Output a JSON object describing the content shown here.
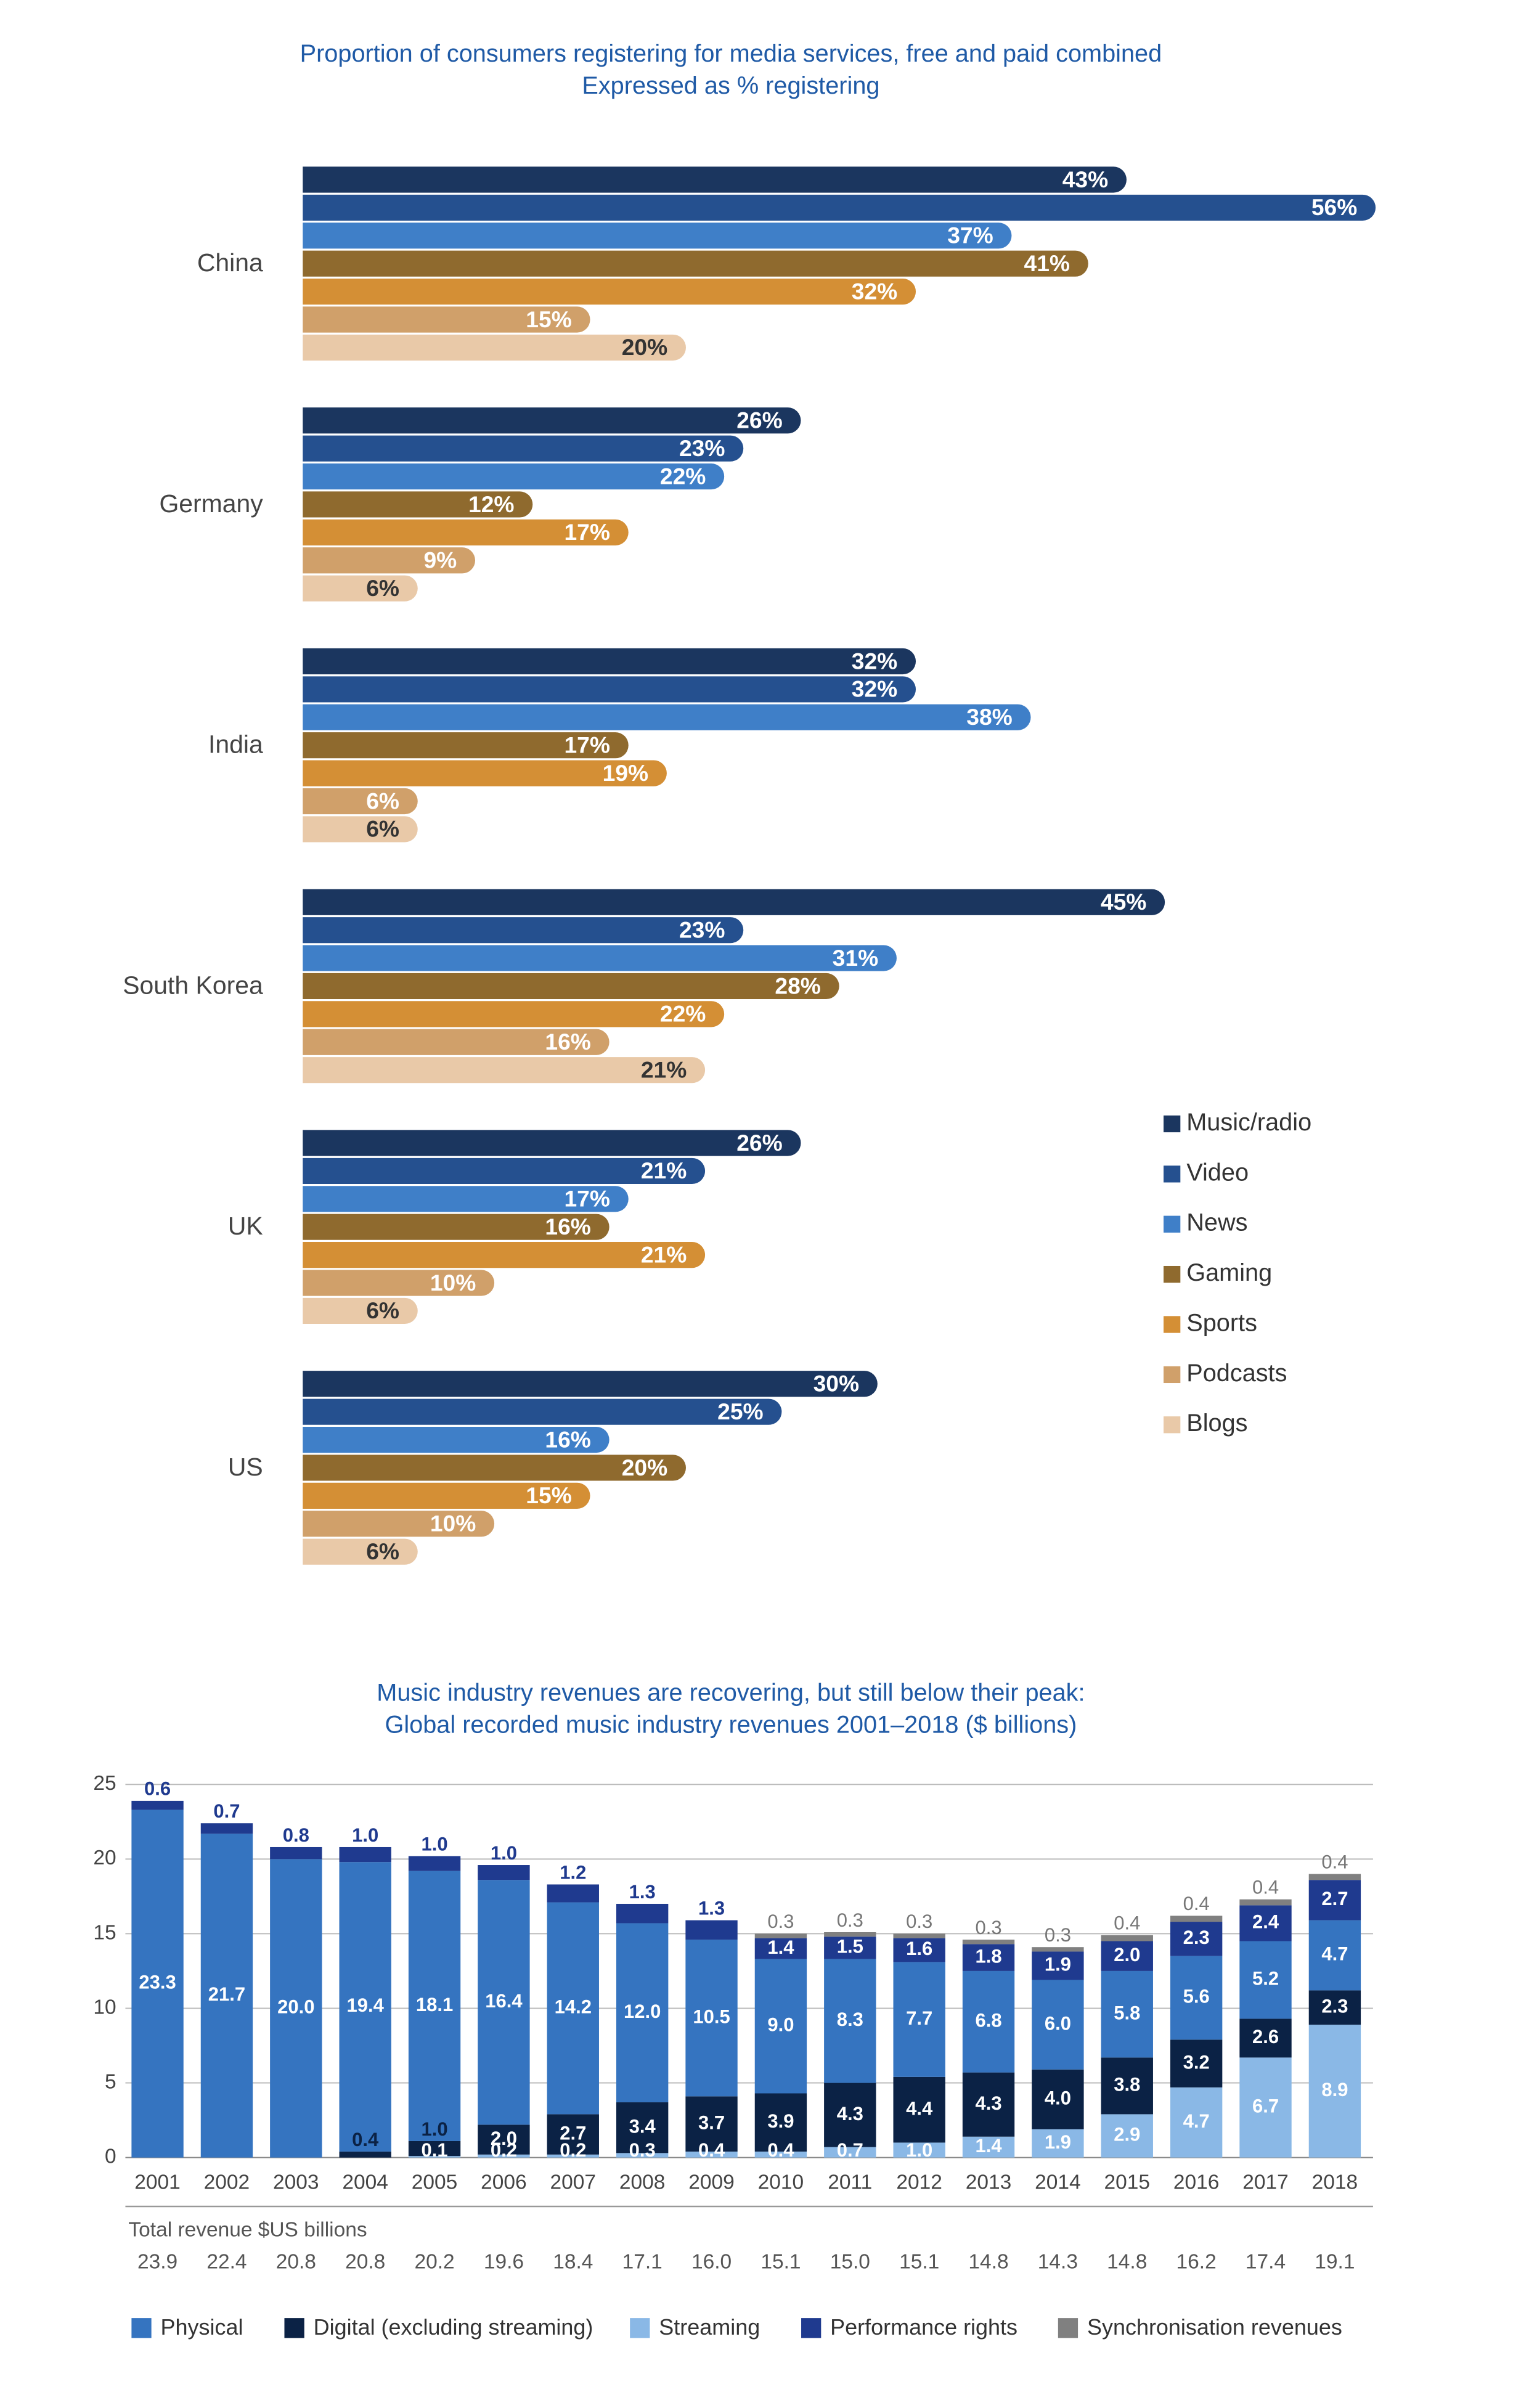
{
  "chart_data": [
    {
      "type": "hbar-grouped",
      "title": "Proportion of consumers registering for media services, free and paid combined",
      "subtitle": "Expressed as % registering",
      "categories": [
        "China",
        "Germany",
        "India",
        "South Korea",
        "UK",
        "US"
      ],
      "series": [
        {
          "name": "Music/radio",
          "color": "#1b365f",
          "values": [
            43,
            26,
            32,
            45,
            26,
            30
          ],
          "value_labels": [
            "43%",
            "26%",
            "32%",
            "45%",
            "26%",
            "30%"
          ]
        },
        {
          "name": "Video",
          "color": "#25508f",
          "values": [
            56,
            23,
            32,
            23,
            21,
            25
          ],
          "value_labels": [
            "56%",
            "23%",
            "32%",
            "23%",
            "21%",
            "25%"
          ]
        },
        {
          "name": "News",
          "color": "#3f7fc8",
          "values": [
            37,
            22,
            38,
            31,
            17,
            16
          ],
          "value_labels": [
            "37%",
            "22%",
            "38%",
            "31%",
            "17%",
            "16%"
          ]
        },
        {
          "name": "Gaming",
          "color": "#8f6a2e",
          "values": [
            41,
            12,
            17,
            28,
            16,
            20
          ],
          "value_labels": [
            "41%",
            "12%",
            "17%",
            "28%",
            "16%",
            "20%"
          ]
        },
        {
          "name": "Sports",
          "color": "#d48f35",
          "values": [
            32,
            17,
            19,
            22,
            21,
            15
          ],
          "value_labels": [
            "32%",
            "17%",
            "19%",
            "22%",
            "21%",
            "15%"
          ]
        },
        {
          "name": "Podcasts",
          "color": "#d0a06a",
          "values": [
            15,
            9,
            6,
            16,
            10,
            10
          ],
          "value_labels": [
            "15%",
            "9%",
            "6%",
            "16%",
            "10%",
            "10%"
          ]
        },
        {
          "name": "Blogs",
          "color": "#e9c9a8",
          "values": [
            20,
            6,
            6,
            21,
            6,
            6
          ],
          "value_labels": [
            "20%",
            "6%",
            "6%",
            "21%",
            "6%",
            "6%"
          ]
        }
      ]
    },
    {
      "type": "stacked-bar",
      "title": "Music industry revenues are recovering, but still below their peak:",
      "subtitle": "Global recorded music industry revenues 2001–2018 ($ billions)",
      "categories": [
        "2001",
        "2002",
        "2003",
        "2004",
        "2005",
        "2006",
        "2007",
        "2008",
        "2009",
        "2010",
        "2011",
        "2012",
        "2013",
        "2014",
        "2015",
        "2016",
        "2017",
        "2018"
      ],
      "ylim": [
        0,
        25
      ],
      "yticks": [
        0,
        5,
        10,
        15,
        20,
        25
      ],
      "grid": true,
      "series": [
        {
          "name": "Streaming",
          "color": "#8ab8e6",
          "values": [
            null,
            null,
            null,
            null,
            0.1,
            0.2,
            0.2,
            0.3,
            0.4,
            0.4,
            0.7,
            1.0,
            1.4,
            1.9,
            2.9,
            4.7,
            6.7,
            8.9
          ],
          "value_labels": [
            null,
            null,
            null,
            null,
            "0.1",
            "0.2",
            "0.2",
            "0.3",
            "0.4",
            "0.4",
            "0.7",
            "1.0",
            "1.4",
            "1.9",
            "2.9",
            "4.7",
            "6.7",
            "8.9"
          ]
        },
        {
          "name": "Digital (excluding streaming)",
          "color": "#0b2245",
          "values": [
            null,
            null,
            null,
            0.4,
            1.0,
            2.0,
            2.7,
            3.4,
            3.7,
            3.9,
            4.3,
            4.4,
            4.3,
            4.0,
            3.8,
            3.2,
            2.6,
            2.3
          ],
          "value_labels": [
            null,
            null,
            null,
            "0.4",
            "1.0",
            "2.0",
            "2.7",
            "3.4",
            "3.7",
            "3.9",
            "4.3",
            "4.4",
            "4.3",
            "4.0",
            "3.8",
            "3.2",
            "2.6",
            "2.3"
          ]
        },
        {
          "name": "Physical",
          "color": "#3574c0",
          "values": [
            23.3,
            21.7,
            20.0,
            19.4,
            18.1,
            16.4,
            14.2,
            12.0,
            10.5,
            9.0,
            8.3,
            7.7,
            6.8,
            6.0,
            5.8,
            5.6,
            5.2,
            4.7
          ],
          "value_labels": [
            "23.3",
            "21.7",
            "20.0",
            "19.4",
            "18.1",
            "16.4",
            "14.2",
            "12.0",
            "10.5",
            "9.0",
            "8.3",
            "7.7",
            "6.8",
            "6.0",
            "5.8",
            "5.6",
            "5.2",
            "4.7"
          ]
        },
        {
          "name": "Performance rights",
          "color": "#1f3a8f",
          "values": [
            0.6,
            0.7,
            0.8,
            1.0,
            1.0,
            1.0,
            1.2,
            1.3,
            1.3,
            1.4,
            1.5,
            1.6,
            1.8,
            1.9,
            2.0,
            2.3,
            2.4,
            2.7
          ],
          "value_labels": [
            "0.6",
            "0.7",
            "0.8",
            "1.0",
            "1.0",
            "1.0",
            "1.2",
            "1.3",
            "1.3",
            "1.4",
            "1.5",
            "1.6",
            "1.8",
            "1.9",
            "2.0",
            "2.3",
            "2.4",
            "2.7"
          ]
        },
        {
          "name": "Synchronisation revenues",
          "color": "#808080",
          "values": [
            null,
            null,
            null,
            null,
            null,
            null,
            null,
            null,
            null,
            0.3,
            0.3,
            0.3,
            0.3,
            0.3,
            0.4,
            0.4,
            0.4,
            0.4
          ],
          "value_labels": [
            null,
            null,
            null,
            null,
            null,
            null,
            null,
            null,
            null,
            "0.3",
            "0.3",
            "0.3",
            "0.3",
            "0.3",
            "0.4",
            "0.4",
            "0.4",
            "0.4"
          ]
        }
      ],
      "legend_order": [
        "Physical",
        "Digital (excluding streaming)",
        "Streaming",
        "Performance rights",
        "Synchronisation revenues"
      ],
      "totals": {
        "label": "Total revenue $US billions",
        "values": [
          23.9,
          22.4,
          20.8,
          20.8,
          20.2,
          19.6,
          18.4,
          17.1,
          16.0,
          15.1,
          15.0,
          15.1,
          14.8,
          14.3,
          14.8,
          16.2,
          17.4,
          19.1
        ],
        "value_labels": [
          "23.9",
          "22.4",
          "20.8",
          "20.8",
          "20.2",
          "19.6",
          "18.4",
          "17.1",
          "16.0",
          "15.1",
          "15.0",
          "15.1",
          "14.8",
          "14.3",
          "14.8",
          "16.2",
          "17.4",
          "19.1"
        ]
      }
    }
  ]
}
